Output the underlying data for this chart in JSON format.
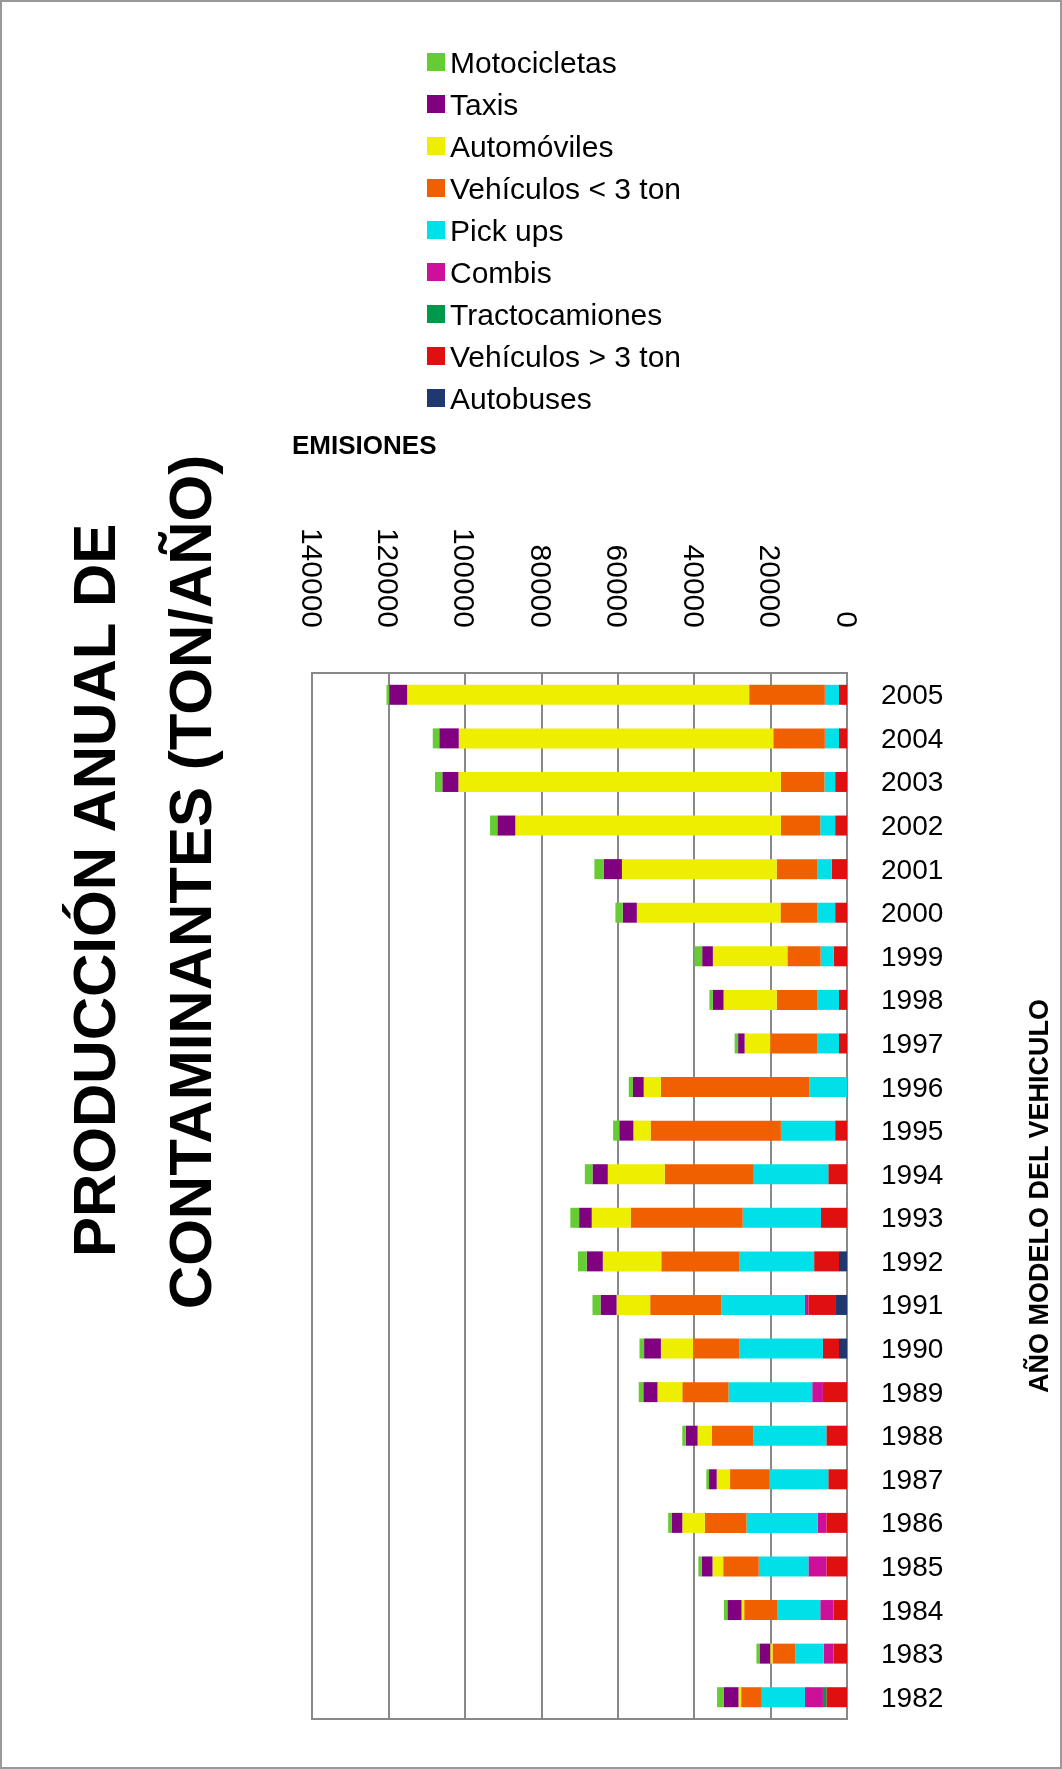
{
  "chart_data": {
    "type": "bar",
    "orientation": "horizontal",
    "title": "PRODUCCIÓN ANUAL DE CONTAMINANTES (TON/AÑO)",
    "xlabel": "EMISIONES",
    "ylabel": "AÑO MODELO DEL VEHICULO",
    "categories": [
      "2005",
      "2004",
      "2003",
      "2002",
      "2001",
      "2000",
      "1999",
      "1998",
      "1997",
      "1996",
      "1995",
      "1994",
      "1993",
      "1992",
      "1991",
      "1990",
      "1989",
      "1988",
      "1987",
      "1986",
      "1985",
      "1984",
      "1983",
      "1982"
    ],
    "stacked": true,
    "xlim": [
      140000,
      0
    ],
    "xticks": [
      0,
      20000,
      40000,
      60000,
      80000,
      100000,
      120000,
      140000
    ],
    "grid": "x",
    "legend": "top",
    "series": [
      {
        "name": "Autobuses",
        "color": "#1f3870",
        "values": [
          0,
          0,
          0,
          0,
          0,
          0,
          0,
          0,
          0,
          0,
          0,
          0,
          0,
          2100,
          3100,
          2100,
          0,
          0,
          0,
          0,
          0,
          0,
          0,
          0
        ]
      },
      {
        "name": "Vehículos > 3 ton",
        "color": "#e01010",
        "values": [
          2100,
          2100,
          3100,
          3100,
          4000,
          3100,
          3500,
          2100,
          2100,
          0,
          3100,
          4900,
          6800,
          6500,
          7000,
          4200,
          6300,
          5400,
          4900,
          5400,
          5400,
          3500,
          3500,
          5400
        ]
      },
      {
        "name": "Tractocamiones",
        "color": "#00994c",
        "values": [
          0,
          0,
          0,
          0,
          0,
          0,
          0,
          0,
          0,
          0,
          0,
          0,
          0,
          0,
          0,
          0,
          0,
          0,
          0,
          0,
          0,
          0,
          0,
          900
        ]
      },
      {
        "name": "Combis",
        "color": "#cc1099",
        "values": [
          0,
          0,
          0,
          0,
          0,
          0,
          0,
          0,
          0,
          0,
          0,
          0,
          0,
          0,
          900,
          0,
          2800,
          0,
          0,
          2300,
          4700,
          3500,
          2600,
          4700
        ]
      },
      {
        "name": "Pick ups",
        "color": "#00e0e8",
        "values": [
          3700,
          3700,
          2800,
          3900,
          3700,
          4700,
          3400,
          5600,
          5600,
          9900,
          14200,
          19500,
          20500,
          19500,
          21900,
          21900,
          21900,
          19100,
          15300,
          18600,
          13000,
          11300,
          7400,
          11300
        ]
      },
      {
        "name": "Vehículos < 3 ton",
        "color": "#f06000",
        "values": [
          19800,
          13500,
          11400,
          10300,
          10700,
          9600,
          8700,
          10700,
          12400,
          38800,
          34100,
          23300,
          29300,
          20500,
          18600,
          12100,
          12100,
          10900,
          10400,
          10900,
          9300,
          8600,
          6000,
          5400
        ]
      },
      {
        "name": "Automóviles",
        "color": "#eeee00",
        "values": [
          89500,
          82300,
          84400,
          69500,
          40500,
          37600,
          19500,
          13900,
          6700,
          4500,
          4500,
          14900,
          10200,
          15300,
          8800,
          8400,
          6500,
          3700,
          3500,
          5900,
          2800,
          700,
          600,
          700
        ]
      },
      {
        "name": "Taxis",
        "color": "#800080",
        "values": [
          4700,
          5100,
          4200,
          4700,
          4700,
          3700,
          2800,
          2800,
          1700,
          2800,
          3700,
          4000,
          3300,
          4200,
          4200,
          4400,
          3700,
          3100,
          2000,
          2800,
          2800,
          3700,
          2800,
          3900
        ]
      },
      {
        "name": "Motocicletas",
        "color": "#66cc33",
        "values": [
          700,
          1700,
          1900,
          1900,
          2500,
          1900,
          2000,
          900,
          900,
          1100,
          1600,
          2000,
          2300,
          2300,
          2100,
          1200,
          1200,
          900,
          700,
          900,
          900,
          900,
          800,
          1700
        ]
      }
    ]
  }
}
